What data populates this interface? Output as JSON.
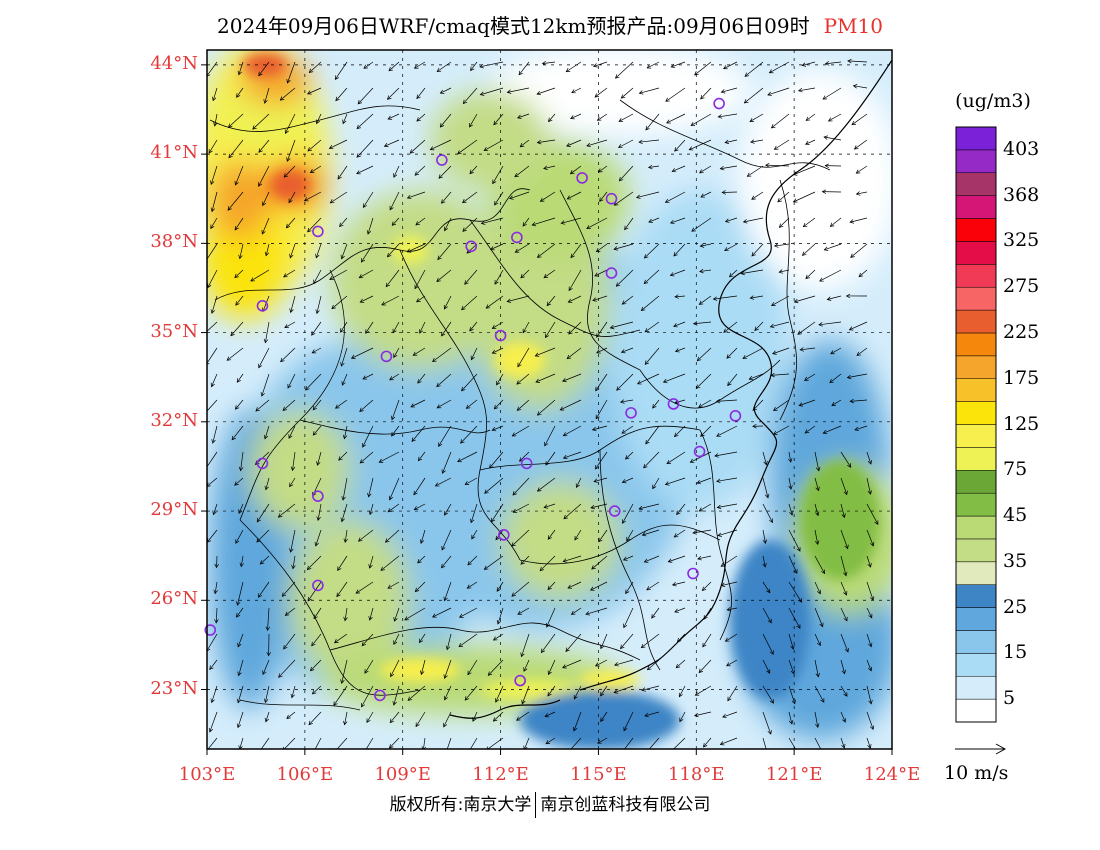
{
  "header": {
    "title": "2024年09月06日WRF/cmaq模式12km预报产品:09月06日09时",
    "pollutant": "PM10"
  },
  "map": {
    "lat_labels": [
      "44°N",
      "41°N",
      "38°N",
      "35°N",
      "32°N",
      "29°N",
      "26°N",
      "23°N"
    ],
    "lat_values": [
      44,
      41,
      38,
      35,
      32,
      29,
      26,
      23
    ],
    "lon_labels": [
      "103°E",
      "106°E",
      "109°E",
      "112°E",
      "115°E",
      "118°E",
      "121°E",
      "124°E"
    ],
    "lon_values": [
      103,
      106,
      109,
      112,
      115,
      118,
      121,
      124
    ],
    "extent": {
      "lon_min": 103,
      "lon_max": 124,
      "lat_min": 21,
      "lat_max": 44.5
    },
    "stations": [
      {
        "lon": 118.7,
        "lat": 42.7
      },
      {
        "lon": 110.2,
        "lat": 40.8
      },
      {
        "lon": 114.5,
        "lat": 40.2
      },
      {
        "lon": 115.4,
        "lat": 39.5
      },
      {
        "lon": 106.4,
        "lat": 38.4
      },
      {
        "lon": 111.1,
        "lat": 37.9
      },
      {
        "lon": 112.5,
        "lat": 38.2
      },
      {
        "lon": 115.4,
        "lat": 37.0
      },
      {
        "lon": 104.7,
        "lat": 35.9
      },
      {
        "lon": 112.0,
        "lat": 34.9
      },
      {
        "lon": 108.5,
        "lat": 34.2
      },
      {
        "lon": 117.3,
        "lat": 32.6
      },
      {
        "lon": 116.0,
        "lat": 32.3
      },
      {
        "lon": 119.2,
        "lat": 32.2
      },
      {
        "lon": 118.1,
        "lat": 31.0
      },
      {
        "lon": 104.7,
        "lat": 30.6
      },
      {
        "lon": 112.8,
        "lat": 30.6
      },
      {
        "lon": 106.4,
        "lat": 29.5
      },
      {
        "lon": 115.5,
        "lat": 29.0
      },
      {
        "lon": 112.1,
        "lat": 28.2
      },
      {
        "lon": 117.9,
        "lat": 26.9
      },
      {
        "lon": 106.4,
        "lat": 26.5
      },
      {
        "lon": 103.1,
        "lat": 25.0
      },
      {
        "lon": 108.3,
        "lat": 22.8
      },
      {
        "lon": 112.6,
        "lat": 23.3
      }
    ]
  },
  "colorbar": {
    "unit": "(ug/m3)",
    "colors": [
      "#ffffff",
      "#d5edfb",
      "#abdcf5",
      "#8ac6eb",
      "#5fa7dc",
      "#3e85c6",
      "#e0eabc",
      "#c3dc86",
      "#b9da74",
      "#82bd45",
      "#6aa736",
      "#eef254",
      "#f7ef4e",
      "#fbe40a",
      "#f7c12a",
      "#f5a52b",
      "#f5870c",
      "#e95e2e",
      "#f76665",
      "#f13a56",
      "#e40d47",
      "#fa0008",
      "#d61677",
      "#a73468",
      "#962ac6",
      "#7b22d8"
    ],
    "labels": [
      "5",
      "15",
      "25",
      "35",
      "45",
      "75",
      "125",
      "175",
      "225",
      "275",
      "325",
      "368",
      "403"
    ]
  },
  "wind_vector": {
    "label": "10 m/s"
  },
  "footer": {
    "owner1": "版权所有:南京大学",
    "owner2": "南京创蓝科技有限公司"
  }
}
